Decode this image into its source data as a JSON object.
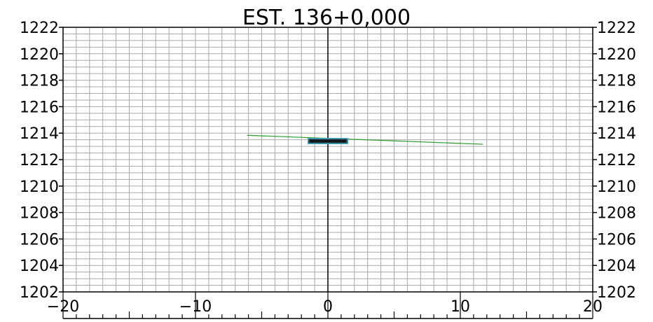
{
  "title": "EST. 136+0,000",
  "colors": {
    "grid": "#a8a8a8",
    "frame": "#000000",
    "terrain": "#2a9a2a",
    "section_fill": "#26343f",
    "section_edge": "#48b4c8"
  },
  "chart_data": {
    "type": "line",
    "title": "EST. 136+0,000",
    "xlabel": "",
    "ylabel": "",
    "xlim": [
      -20,
      20
    ],
    "ylim": [
      1202,
      1222
    ],
    "x_ticks": [
      -20,
      -10,
      0,
      10,
      20
    ],
    "x_tick_labels": [
      "−20",
      "−10",
      "0",
      "10",
      "20"
    ],
    "y_ticks": [
      1202,
      1204,
      1206,
      1208,
      1210,
      1212,
      1214,
      1216,
      1218,
      1220,
      1222
    ],
    "y_tick_labels": [
      "1202",
      "1204",
      "1206",
      "1208",
      "1210",
      "1212",
      "1214",
      "1216",
      "1218",
      "1220",
      "1222"
    ],
    "grid": true,
    "legend": "none",
    "series": [
      {
        "x": [
          -6.1,
          11.7
        ],
        "y": [
          1213.84,
          1213.16
        ]
      }
    ],
    "section_box": {
      "x": [
        -1.5,
        1.5
      ],
      "y": [
        1213.2,
        1213.6
      ]
    }
  }
}
